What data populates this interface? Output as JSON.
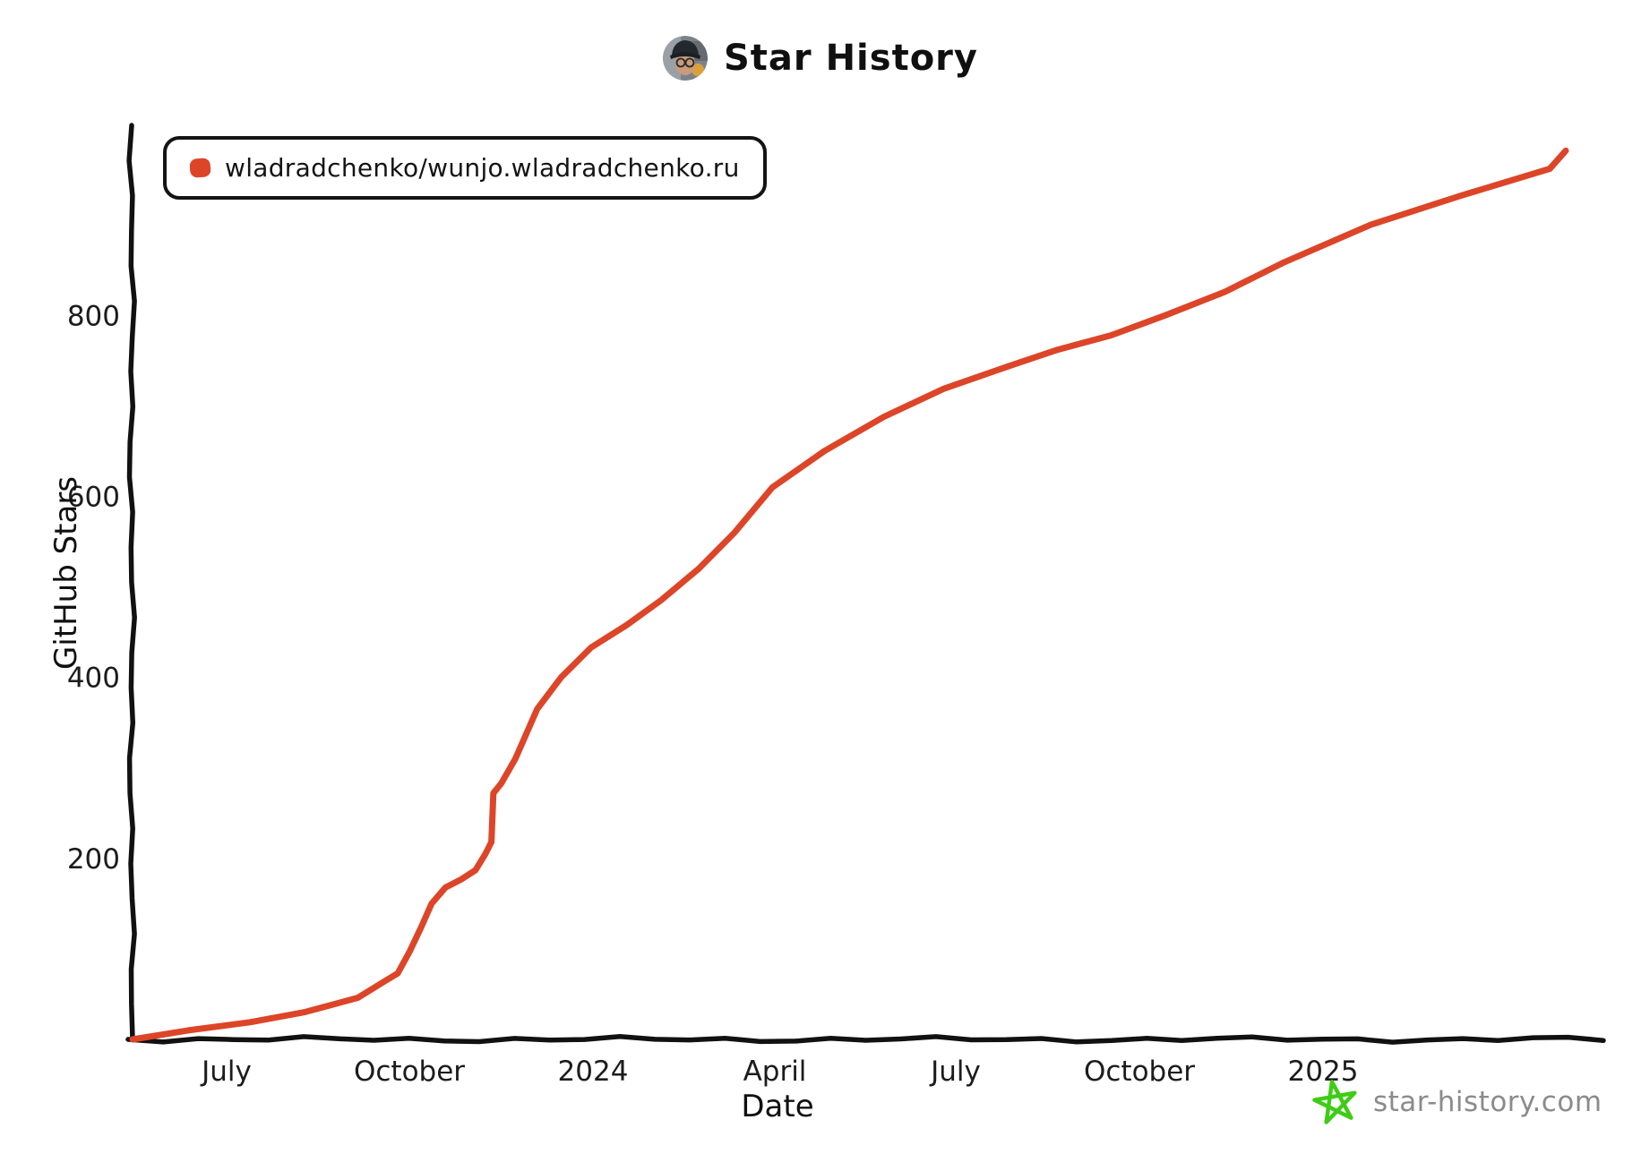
{
  "header": {
    "title": "Star History"
  },
  "legend": {
    "series_label": "wladradchenko/wunjo.wladradchenko.ru",
    "swatch_color": "#dd4528"
  },
  "footer": {
    "site_label": "star-history.com",
    "star_color": "#3fcc17",
    "text_color": "#8b8b8b"
  },
  "chart_data": {
    "type": "line",
    "title": "Star History",
    "xlabel": "Date",
    "ylabel": "GitHub Stars",
    "grid": false,
    "legend_position": "top-left",
    "axis_color": "#111111",
    "ylim": [
      0,
      1010
    ],
    "xlim": [
      "2023-05-15",
      "2025-05-03"
    ],
    "y_ticks": [
      200,
      400,
      600,
      800
    ],
    "x_ticks": [
      {
        "date": "2023-07-01",
        "label": "July"
      },
      {
        "date": "2023-10-01",
        "label": "October"
      },
      {
        "date": "2024-01-01",
        "label": "2024"
      },
      {
        "date": "2024-04-01",
        "label": "April"
      },
      {
        "date": "2024-07-01",
        "label": "July"
      },
      {
        "date": "2024-10-01",
        "label": "October"
      },
      {
        "date": "2025-01-01",
        "label": "2025"
      }
    ],
    "series": [
      {
        "name": "wladradchenko/wunjo.wladradchenko.ru",
        "color": "#dd4528",
        "points": [
          [
            "2023-05-15",
            0
          ],
          [
            "2023-06-12",
            10
          ],
          [
            "2023-07-13",
            19
          ],
          [
            "2023-08-09",
            30
          ],
          [
            "2023-09-05",
            46
          ],
          [
            "2023-09-19",
            65
          ],
          [
            "2023-09-25",
            73
          ],
          [
            "2023-10-01",
            97
          ],
          [
            "2023-10-07",
            125
          ],
          [
            "2023-10-12",
            150
          ],
          [
            "2023-10-19",
            168
          ],
          [
            "2023-10-27",
            177
          ],
          [
            "2023-11-03",
            187
          ],
          [
            "2023-11-08",
            205
          ],
          [
            "2023-11-11",
            218
          ],
          [
            "2023-11-12",
            272
          ],
          [
            "2023-11-16",
            283
          ],
          [
            "2023-11-23",
            310
          ],
          [
            "2023-12-04",
            365
          ],
          [
            "2023-12-16",
            400
          ],
          [
            "2023-12-31",
            433
          ],
          [
            "2024-01-18",
            458
          ],
          [
            "2024-02-04",
            485
          ],
          [
            "2024-02-23",
            520
          ],
          [
            "2024-03-12",
            560
          ],
          [
            "2024-03-31",
            610
          ],
          [
            "2024-04-26",
            650
          ],
          [
            "2024-05-26",
            688
          ],
          [
            "2024-06-25",
            719
          ],
          [
            "2024-07-25",
            742
          ],
          [
            "2024-08-21",
            762
          ],
          [
            "2024-09-17",
            778
          ],
          [
            "2024-10-14",
            800
          ],
          [
            "2024-11-13",
            826
          ],
          [
            "2024-12-12",
            858
          ],
          [
            "2025-01-25",
            900
          ],
          [
            "2025-03-11",
            932
          ],
          [
            "2025-04-25",
            962
          ],
          [
            "2025-05-03",
            982
          ]
        ]
      }
    ]
  }
}
